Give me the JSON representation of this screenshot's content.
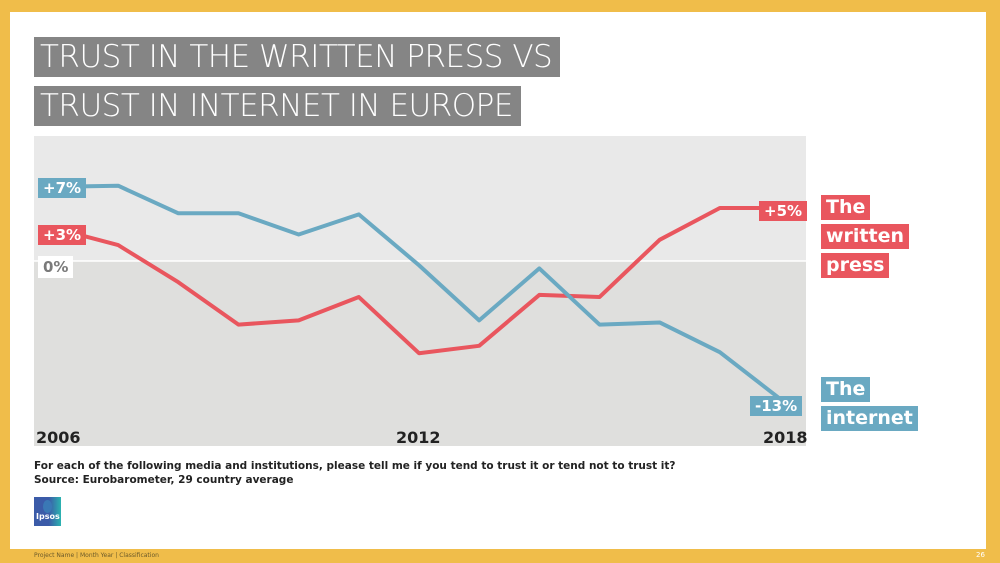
{
  "slide": {
    "title_line1": "TRUST IN THE WRITTEN PRESS VS",
    "title_line2": "TRUST IN INTERNET IN EUROPE",
    "question": "For each of the following media and institutions, please tell me if you tend to trust it or tend not to trust it?",
    "source": "Source: Eurobarometer, 29 country average",
    "logo_text": "Ipsos",
    "footer": "Project Name  |  Month Year |  Classification",
    "page_number": "26"
  },
  "colors": {
    "border": "#f0bd4a",
    "title_bg": "#858585",
    "press": "#e9565e",
    "internet": "#6aa9c2",
    "plot_bg_upper": "#e9e9e9",
    "plot_bg_lower": "#dfdfdd"
  },
  "chart_data": {
    "type": "line",
    "title": "TRUST IN THE WRITTEN PRESS VS TRUST IN INTERNET IN EUROPE",
    "x": [
      2006,
      2007,
      2008,
      2009,
      2010,
      2011,
      2012,
      2013,
      2014,
      2015,
      2016,
      2017,
      2018
    ],
    "tick_labels": [
      "2006",
      "2012",
      "2018"
    ],
    "zero_label": "0%",
    "ylim": [
      -16,
      12
    ],
    "series": [
      {
        "name": "The written press",
        "legend": [
          "The",
          "written",
          "press"
        ],
        "start_label": "+3%",
        "end_label": "+5%",
        "values": [
          3.0,
          1.5,
          -2.0,
          -6.0,
          -5.6,
          -3.4,
          -8.7,
          -8.0,
          -3.2,
          -3.4,
          2.0,
          5.0,
          5.0
        ]
      },
      {
        "name": "The internet",
        "legend": [
          "The",
          "internet"
        ],
        "start_label": "+7%",
        "end_label": "-13%",
        "values": [
          7.0,
          7.1,
          4.5,
          4.5,
          2.5,
          4.4,
          -0.4,
          -5.6,
          -0.7,
          -6.0,
          -5.8,
          -8.6,
          -13.0
        ]
      }
    ],
    "xlabel": "",
    "ylabel": "",
    "grid": false,
    "legend_placement": "right"
  }
}
